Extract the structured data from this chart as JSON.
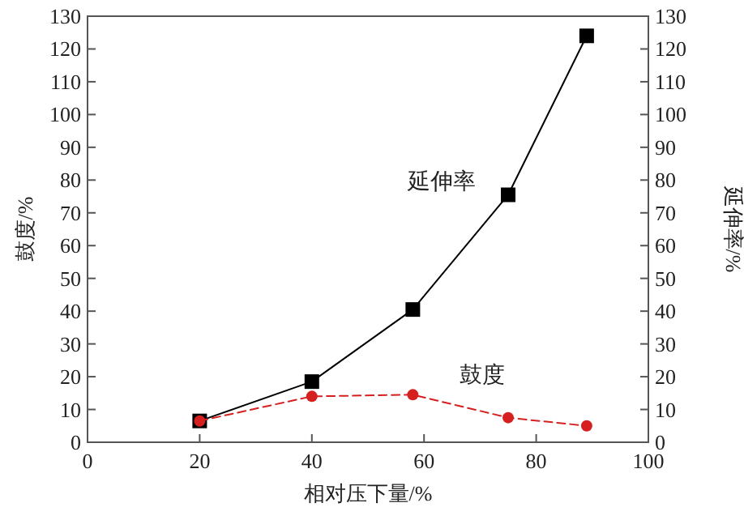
{
  "chart_data": {
    "type": "line",
    "xlabel": "相对压下量/%",
    "ylabel": "鼓度/%",
    "y2label": "延伸率/%",
    "xlim": [
      0,
      100
    ],
    "xticks": [
      0,
      20,
      40,
      60,
      80,
      100
    ],
    "ylim": [
      0,
      130
    ],
    "yticks": [
      0,
      10,
      20,
      30,
      40,
      50,
      60,
      70,
      80,
      90,
      100,
      110,
      120,
      130
    ],
    "y2lim": [
      0,
      130
    ],
    "y2ticks": [
      0,
      10,
      20,
      30,
      40,
      50,
      60,
      70,
      80,
      90,
      100,
      110,
      120,
      130
    ],
    "grid": false,
    "x": [
      20,
      40,
      58,
      75,
      89
    ],
    "series": [
      {
        "name": "延伸率",
        "color": "#000000",
        "marker": "square",
        "line_style": "solid",
        "values": [
          6.5,
          18.5,
          40.5,
          75.5,
          124
        ]
      },
      {
        "name": "鼓度",
        "color": "#d62020",
        "marker": "circle",
        "line_style": "dashed",
        "values": [
          6.5,
          14,
          14.5,
          7.5,
          5
        ]
      }
    ]
  }
}
